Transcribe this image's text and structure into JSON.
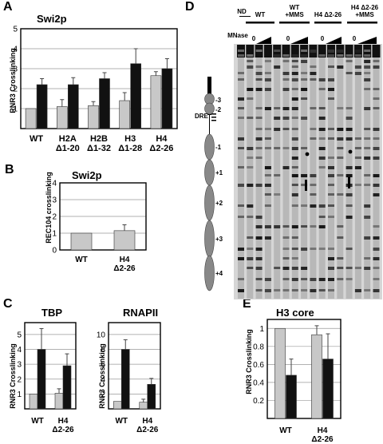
{
  "panels": {
    "A": {
      "letter": "A",
      "title": "Swi2p",
      "ylabel": "RNR3 Crosslinking"
    },
    "B": {
      "letter": "B",
      "title": "Swi2p",
      "ylabel": "REC104 crosslinking"
    },
    "C": {
      "letter": "C"
    },
    "C1": {
      "title": "TBP",
      "ylabel": "RNR3 Crosslinking"
    },
    "C2": {
      "title": "RNAPII",
      "ylabel": "RNR3 Crosslinking"
    },
    "D": {
      "letter": "D"
    },
    "E": {
      "letter": "E",
      "title": "H3 core",
      "ylabel": "RNR3 Crosslinking"
    }
  },
  "gel": {
    "nd": "ND",
    "wt": "WT",
    "wt_mms": [
      "WT",
      "+MMS"
    ],
    "h4": "H4 Δ2-26",
    "h4_mms": [
      "H4 Δ2-26",
      "+MMS"
    ],
    "mnase": "MNase",
    "zero": "0",
    "dre": "DRE",
    "nucleosomes": [
      "-3",
      "-2",
      "-1",
      "+1",
      "+2",
      "+3",
      "+4"
    ]
  },
  "colors": {
    "gray": "#c8c8c8",
    "black": "#111111"
  },
  "chart_data": [
    {
      "id": "A",
      "type": "bar",
      "title": "Swi2p",
      "ylabel": "RNR3 Crosslinking",
      "categories": [
        [
          "WT"
        ],
        [
          "H2A",
          "Δ1-20"
        ],
        [
          "H2B",
          "Δ1-32"
        ],
        [
          "H3",
          "Δ1-28"
        ],
        [
          "H4",
          "Δ2-26"
        ]
      ],
      "ylim": [
        0,
        5
      ],
      "yticks": [
        1,
        2,
        3,
        4,
        5
      ],
      "series": [
        {
          "color": "gray",
          "values": [
            1.0,
            1.1,
            1.15,
            1.4,
            2.65
          ],
          "errors": [
            0,
            0.35,
            0.2,
            0.4,
            0.2
          ]
        },
        {
          "color": "black",
          "values": [
            2.2,
            2.2,
            2.5,
            3.25,
            3.0
          ],
          "errors": [
            0.3,
            0.35,
            0.3,
            0.75,
            0.5
          ]
        }
      ]
    },
    {
      "id": "B",
      "type": "bar",
      "title": "Swi2p",
      "ylabel": "REC104 crosslinking",
      "categories": [
        [
          "WT"
        ],
        [
          "H4",
          "Δ2-26"
        ]
      ],
      "ylim": [
        0,
        4
      ],
      "yticks": [
        0,
        1,
        2,
        3,
        4
      ],
      "series": [
        {
          "color": "gray",
          "values": [
            1.0,
            1.15
          ],
          "errors": [
            0,
            0.35
          ]
        }
      ]
    },
    {
      "id": "C1",
      "type": "bar",
      "title": "TBP",
      "ylabel": "RNR3 Crosslinking",
      "categories": [
        [
          "WT"
        ],
        [
          "H4",
          "Δ2-26"
        ]
      ],
      "ylim": [
        0,
        5.8
      ],
      "yticks": [
        1,
        2,
        3,
        4,
        5
      ],
      "series": [
        {
          "color": "gray",
          "values": [
            1.0,
            1.05
          ],
          "errors": [
            0,
            0.3
          ]
        },
        {
          "color": "black",
          "values": [
            4.0,
            2.9
          ],
          "errors": [
            1.4,
            0.8
          ]
        }
      ]
    },
    {
      "id": "C2",
      "type": "bar",
      "title": "RNAPII",
      "ylabel": "RNR3 Crosslinking",
      "categories": [
        [
          "WT"
        ],
        [
          "H4",
          "Δ2-26"
        ]
      ],
      "ylim": [
        0,
        11.6
      ],
      "yticks": [
        2,
        4,
        6,
        8,
        10
      ],
      "series": [
        {
          "color": "gray",
          "values": [
            1.0,
            0.9
          ],
          "errors": [
            0,
            0.4
          ]
        },
        {
          "color": "black",
          "values": [
            8.0,
            3.3
          ],
          "errors": [
            1.3,
            0.8
          ]
        }
      ]
    },
    {
      "id": "E",
      "type": "bar",
      "title": "H3 core",
      "ylabel": "RNR3 Crosslinking",
      "categories": [
        [
          "WT"
        ],
        [
          "H4",
          "Δ2-26"
        ]
      ],
      "ylim": [
        0,
        1.1
      ],
      "yticks": [
        0.2,
        0.4,
        0.6,
        0.8,
        1
      ],
      "series": [
        {
          "color": "gray",
          "values": [
            1.0,
            0.93
          ],
          "errors": [
            0,
            0.1
          ]
        },
        {
          "color": "black",
          "values": [
            0.48,
            0.66
          ],
          "errors": [
            0.18,
            0.28
          ]
        }
      ]
    }
  ]
}
